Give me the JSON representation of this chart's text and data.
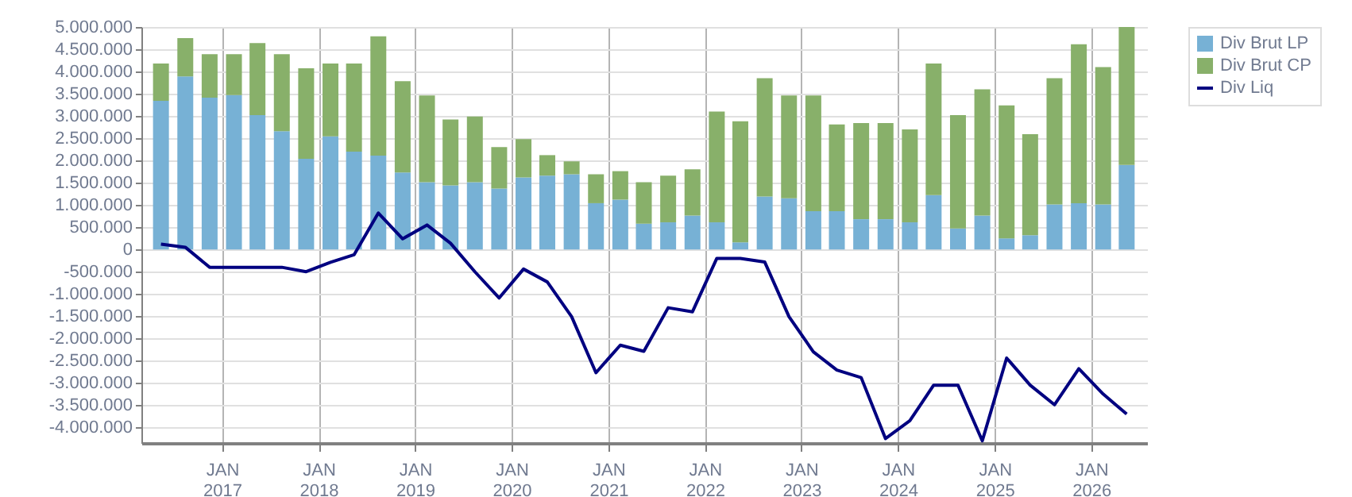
{
  "chart_data": {
    "type": "bar",
    "stacked": true,
    "x": [
      "2016-05-15",
      "2016-08-15",
      "2016-11-15",
      "2017-02-15",
      "2017-05-15",
      "2017-08-15",
      "2017-11-15",
      "2018-02-15",
      "2018-05-15",
      "2018-08-15",
      "2018-11-15",
      "2019-02-15",
      "2019-05-15",
      "2019-08-15",
      "2019-11-15",
      "2020-02-15",
      "2020-05-15",
      "2020-08-15",
      "2020-11-15",
      "2021-02-15",
      "2021-05-15",
      "2021-08-15",
      "2021-11-15",
      "2022-02-15",
      "2022-05-15",
      "2022-08-15",
      "2022-11-15",
      "2023-02-15",
      "2023-05-15",
      "2023-08-15",
      "2023-11-15",
      "2024-02-15",
      "2024-05-15",
      "2024-08-15",
      "2024-11-15",
      "2025-02-15",
      "2025-05-15",
      "2025-08-15",
      "2025-11-15",
      "2026-02-15",
      "2026-05-15"
    ],
    "series": [
      {
        "name": "Div Brut LP",
        "color": "#77b1d5",
        "values": [
          3340000,
          3890000,
          3410000,
          3470000,
          3020000,
          2660000,
          2040000,
          2540000,
          2200000,
          2110000,
          1730000,
          1510000,
          1440000,
          1510000,
          1370000,
          1620000,
          1660000,
          1690000,
          1040000,
          1120000,
          580000,
          610000,
          760000,
          610000,
          160000,
          1190000,
          1150000,
          860000,
          860000,
          680000,
          680000,
          610000,
          1220000,
          470000,
          760000,
          250000,
          320000,
          1010000,
          1040000,
          1010000,
          1900000
        ]
      },
      {
        "name": "Div Brut CP",
        "color": "#88b06a",
        "values": [
          840000,
          860000,
          980000,
          920000,
          1620000,
          1730000,
          2030000,
          1640000,
          1980000,
          2680000,
          2050000,
          1950000,
          1480000,
          1480000,
          930000,
          860000,
          460000,
          290000,
          650000,
          640000,
          930000,
          1050000,
          1040000,
          2490000,
          2720000,
          2660000,
          2310000,
          2600000,
          1950000,
          2160000,
          2160000,
          2090000,
          2960000,
          2550000,
          2840000,
          2990000,
          2270000,
          2840000,
          3570000,
          3090000,
          3100000
        ]
      },
      {
        "name": "Div Liq",
        "type": "line",
        "color": "#000080",
        "values": [
          120000,
          50000,
          -400000,
          -400000,
          -400000,
          -400000,
          -500000,
          -290000,
          -120000,
          820000,
          240000,
          550000,
          140000,
          -500000,
          -1090000,
          -440000,
          -730000,
          -1510000,
          -2770000,
          -2150000,
          -2290000,
          -1310000,
          -1400000,
          -200000,
          -200000,
          -280000,
          -1510000,
          -2300000,
          -2710000,
          -2880000,
          -4250000,
          -3850000,
          -3050000,
          -3050000,
          -4300000,
          -2440000,
          -3050000,
          -3490000,
          -2680000,
          -3250000,
          -3700000
        ]
      }
    ],
    "xlim": [
      "2016-04-01",
      "2026-07-01"
    ],
    "xticks": [
      {
        "value": "2017-01-01",
        "label": "JAN 2017"
      },
      {
        "value": "2018-01-01",
        "label": "JAN 2018"
      },
      {
        "value": "2019-01-01",
        "label": "JAN 2019"
      },
      {
        "value": "2020-01-01",
        "label": "JAN 2020"
      },
      {
        "value": "2021-01-01",
        "label": "JAN 2021"
      },
      {
        "value": "2022-01-01",
        "label": "JAN 2022"
      },
      {
        "value": "2023-01-01",
        "label": "JAN 2023"
      },
      {
        "value": "2024-01-01",
        "label": "JAN 2024"
      },
      {
        "value": "2025-01-01",
        "label": "JAN 2025"
      },
      {
        "value": "2026-01-01",
        "label": "JAN 2026"
      }
    ],
    "ylim": [
      -4350000,
      5000000
    ],
    "yticks": [
      {
        "value": 5000000,
        "label": "5.000.000"
      },
      {
        "value": 4500000,
        "label": "4.500.000"
      },
      {
        "value": 4000000,
        "label": "4.000.000"
      },
      {
        "value": 3500000,
        "label": "3.500.000"
      },
      {
        "value": 3000000,
        "label": "3.000.000"
      },
      {
        "value": 2500000,
        "label": "2.500.000"
      },
      {
        "value": 2000000,
        "label": "2.000.000"
      },
      {
        "value": 1500000,
        "label": "1.500.000"
      },
      {
        "value": 1000000,
        "label": "1.000.000"
      },
      {
        "value": 500000,
        "label": "500.000"
      },
      {
        "value": 0,
        "label": "0"
      },
      {
        "value": -500000,
        "label": "-500.000"
      },
      {
        "value": -1000000,
        "label": "-1.000.000"
      },
      {
        "value": -1500000,
        "label": "-1.500.000"
      },
      {
        "value": -2000000,
        "label": "-2.000.000"
      },
      {
        "value": -2500000,
        "label": "-2.500.000"
      },
      {
        "value": -3000000,
        "label": "-3.000.000"
      },
      {
        "value": -3500000,
        "label": "-3.500.000"
      },
      {
        "value": -4000000,
        "label": "-4.000.000"
      }
    ],
    "grid": true,
    "legend": "top right",
    "marker": "none",
    "line_style": "solid"
  }
}
